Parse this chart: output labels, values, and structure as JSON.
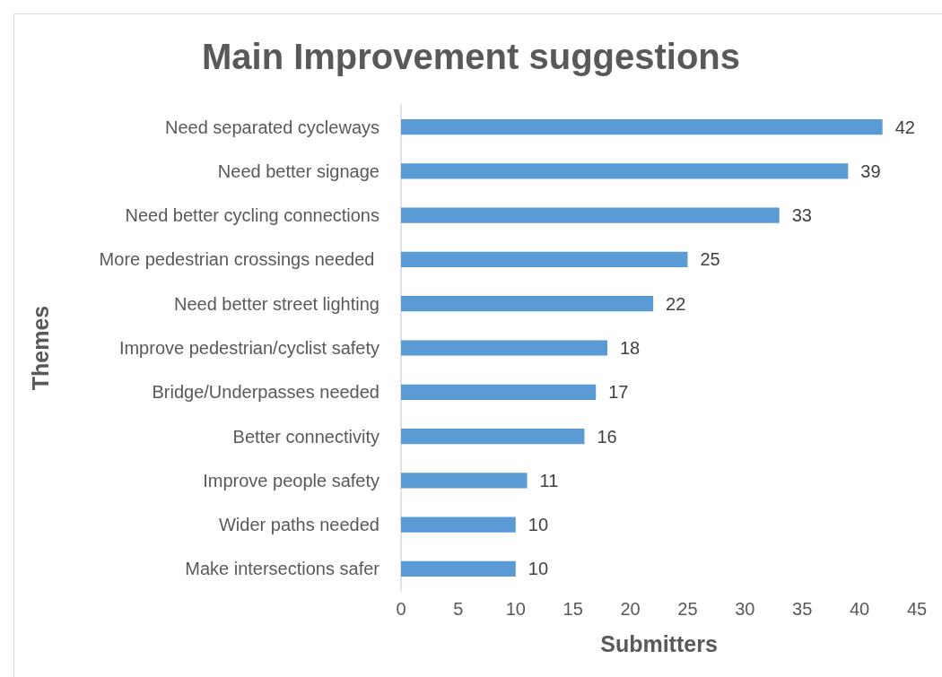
{
  "chart_data": {
    "type": "bar",
    "orientation": "horizontal",
    "title": "Main Improvement suggestions",
    "xlabel": "Submitters",
    "ylabel": "Themes",
    "categories": [
      "Need separated cycleways",
      "Need better signage",
      "Need better cycling connections",
      "More pedestrian crossings needed ",
      "Need better street lighting",
      "Improve pedestrian/cyclist safety",
      "Bridge/Underpasses needed",
      "Better connectivity",
      "Improve people safety",
      "Wider paths needed",
      "Make intersections safer"
    ],
    "values": [
      42,
      39,
      33,
      25,
      22,
      18,
      17,
      16,
      11,
      10,
      10
    ],
    "color": "#5b9bd5",
    "xlim": [
      0,
      45
    ],
    "xticks": [
      0,
      5,
      10,
      15,
      20,
      25,
      30,
      35,
      40,
      45
    ],
    "data_labels": true
  }
}
